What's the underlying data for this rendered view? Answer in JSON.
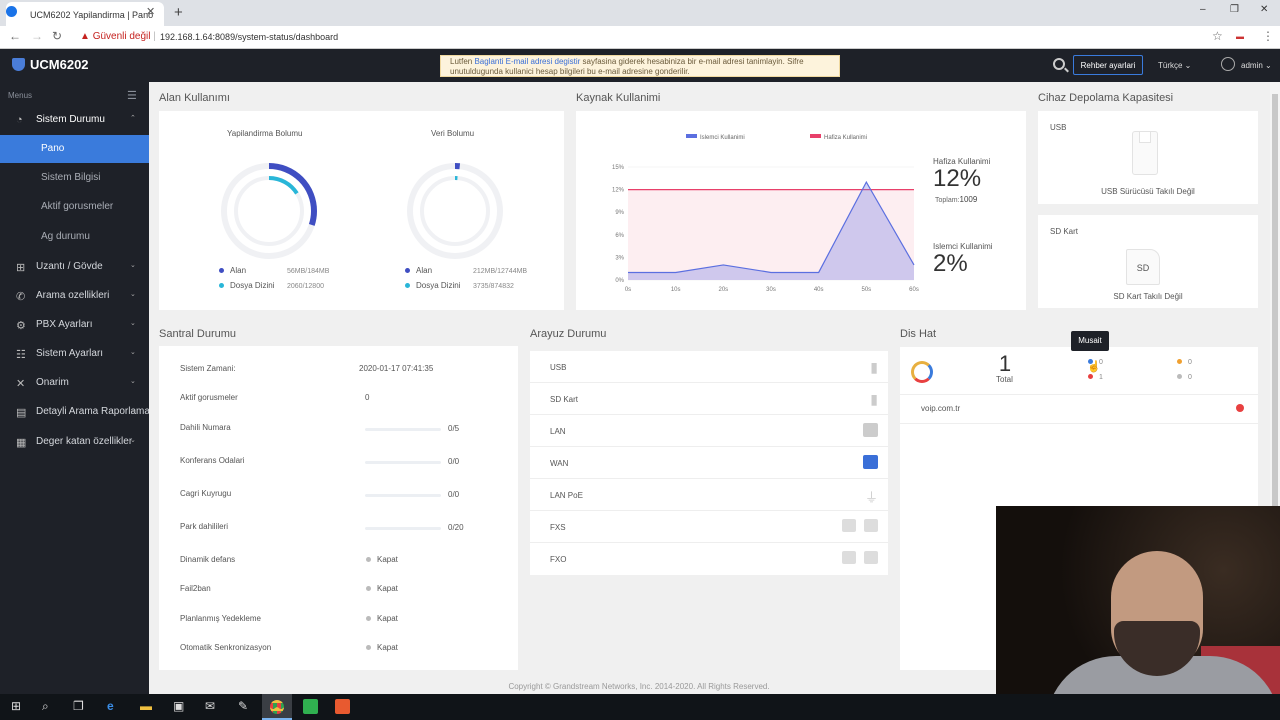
{
  "browser": {
    "tab_title": "UCM6202 Yapilandirma | Pano",
    "tab_close": "✕",
    "new_tab": "+",
    "window_controls": [
      "–",
      "❐",
      "✕"
    ],
    "security": "Güvenli değil",
    "url": "192.168.1.64:8089/system-status/dashboard",
    "nav_icons": [
      "arrow-back-icon",
      "arrow-forward-icon",
      "reload-icon",
      "star-icon",
      "menu-icon"
    ]
  },
  "header": {
    "product": "UCM6202",
    "notice_pre": "Lutfen ",
    "notice_link": "Baglanti E-mail adresi degistir",
    "notice_post": " sayfasina giderek hesabiniza bir e-mail adresi tanimlayin. Sifre unutuldugunda kullanici hesap bilgileri bu e-mail adresine gonderilir.",
    "guide_button": "Rehber ayarlari",
    "language": "Türkçe ⌄",
    "user": "admin ⌄"
  },
  "sidebar": {
    "menus_label": "Menus",
    "items": [
      {
        "label": "Sistem Durumu",
        "icon": "gauge-icon",
        "chev": "⌃"
      },
      {
        "label": "Uzantı / Gövde",
        "icon": "network-icon",
        "chev": "⌄"
      },
      {
        "label": "Arama ozellikleri",
        "icon": "phone-icon",
        "chev": "⌄"
      },
      {
        "label": "PBX Ayarları",
        "icon": "gear-icon",
        "chev": "⌄"
      },
      {
        "label": "Sistem Ayarları",
        "icon": "sliders-icon",
        "chev": "⌄"
      },
      {
        "label": "Onarim",
        "icon": "wrench-icon",
        "chev": "⌄"
      },
      {
        "label": "Detayli Arama Raporlaması",
        "icon": "document-icon",
        "chev": "⌄"
      },
      {
        "label": "Deger katan özellikler",
        "icon": "grid-icon",
        "chev": "⌄"
      }
    ],
    "subitems": [
      "Pano",
      "Sistem Bilgisi",
      "Aktif gorusmeler",
      "Ag durumu"
    ]
  },
  "storage": {
    "title": "Alan Kullanımı",
    "config": {
      "title": "Yapilandirma Bolumu",
      "used_label": "Alan",
      "used_value": "56MB/184MB",
      "files_label": "Dosya Dizini",
      "files_value": "2060/12800",
      "used_fraction": 0.3,
      "files_fraction": 0.16
    },
    "data": {
      "title": "Veri Bolumu",
      "used_label": "Alan",
      "used_value": "212MB/12744MB",
      "files_label": "Dosya Dizini",
      "files_value": "3735/874832",
      "used_fraction": 0.017,
      "files_fraction": 0.004
    }
  },
  "resource": {
    "title": "Kaynak Kullanimi",
    "memory_title": "Hafiza Kullanimi",
    "memory_value": "12%",
    "memory_total_label": "Toplam:",
    "memory_total": "1009",
    "cpu_title": "Islemci Kullanimi",
    "cpu_value": "2%"
  },
  "chart_data": {
    "type": "area",
    "x": [
      "0s",
      "10s",
      "20s",
      "30s",
      "40s",
      "50s",
      "60s"
    ],
    "yticks": [
      "0%",
      "3%",
      "6%",
      "9%",
      "12%",
      "15%"
    ],
    "ylim": [
      0,
      15
    ],
    "series": [
      {
        "name": "Islemci Kullanimi",
        "color": "#5b6fe0",
        "points": [
          [
            0,
            1
          ],
          [
            10,
            1
          ],
          [
            20,
            2
          ],
          [
            30,
            1
          ],
          [
            40,
            1
          ],
          [
            50,
            13
          ],
          [
            60,
            2
          ]
        ]
      },
      {
        "name": "Hafiza Kullanimi",
        "color": "#e8406a",
        "points": [
          [
            0,
            12
          ],
          [
            60,
            12
          ]
        ]
      }
    ]
  },
  "device_storage": {
    "title": "Cihaz Depolama Kapasitesi",
    "usb_label": "USB",
    "usb_status": "USB Sürücüsü Takılı Değil",
    "sd_label": "SD Kart",
    "sd_icon_text": "SD",
    "sd_status": "SD Kart Takılı Değil"
  },
  "pbx": {
    "title": "Santral Durumu",
    "time_label": "Sistem Zamani:",
    "time_value": "2020-01-17 07:41:35",
    "active_label": "Aktif gorusmeler",
    "active_value": "0",
    "bars": [
      {
        "label": "Dahili Numara",
        "value": "0/5"
      },
      {
        "label": "Konferans Odalari",
        "value": "0/0"
      },
      {
        "label": "Cagri Kuyrugu",
        "value": "0/0"
      },
      {
        "label": "Park dahilileri",
        "value": "0/20"
      }
    ],
    "toggles": [
      {
        "label": "Dinamik defans",
        "value": "Kapat"
      },
      {
        "label": "Fail2ban",
        "value": "Kapat"
      },
      {
        "label": "Planlanmış Yedekleme",
        "value": "Kapat"
      },
      {
        "label": "Otomatik Senkronizasyon",
        "value": "Kapat"
      }
    ]
  },
  "interfaces": {
    "title": "Arayuz Durumu",
    "rows": [
      {
        "name": "USB",
        "icon": "usb-icon"
      },
      {
        "name": "SD Kart",
        "icon": "sdcard-icon"
      },
      {
        "name": "LAN",
        "icon": "ethernet-icon"
      },
      {
        "name": "WAN",
        "icon": "ethernet-active-icon"
      },
      {
        "name": "LAN PoE",
        "icon": "plug-icon"
      },
      {
        "name": "FXS",
        "icon": "fxs-port-icon"
      },
      {
        "name": "FXO",
        "icon": "fxo-port-icon"
      }
    ]
  },
  "trunks": {
    "title": "Dis Hat",
    "total_number": "1",
    "total_label": "Total",
    "tooltip": "Musait",
    "counts": [
      {
        "value": "0",
        "color": "#3a7bdc"
      },
      {
        "value": "1",
        "color": "#e84040"
      },
      {
        "value": "0",
        "color": "#f0a030"
      },
      {
        "value": "0",
        "color": "#bbbbbb"
      }
    ],
    "list": [
      {
        "name": "voip.com.tr",
        "status_color": "#e84040"
      }
    ]
  },
  "footer": "Copyright © Grandstream Networks, Inc. 2014-2020. All Rights Reserved.",
  "taskbar": [
    "windows-icon",
    "search-icon",
    "task-view-icon",
    "edge-icon",
    "folder-icon",
    "store-icon",
    "mail-icon",
    "pen-icon",
    "chrome-icon",
    "app-green-icon",
    "app-orange-icon"
  ]
}
